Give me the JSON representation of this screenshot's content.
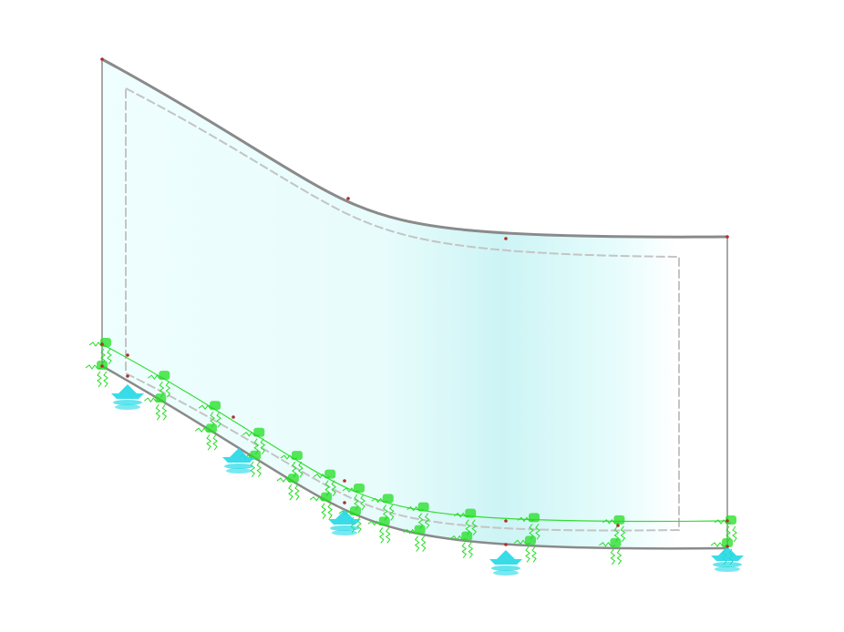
{
  "viewport": {
    "background": "#ffffff",
    "surface_colors": [
      "#effefe",
      "#e8fcfc",
      "#cdf4f5",
      "#f4ffff"
    ],
    "edge_color": "#9a9a9a",
    "node_color": "#b0302a",
    "spring_color": "#22dd22",
    "support_color": "#22d8e6"
  },
  "icons": {
    "line_spring": "line-spring-icon",
    "nodal_support": "nodal-support-icon"
  }
}
